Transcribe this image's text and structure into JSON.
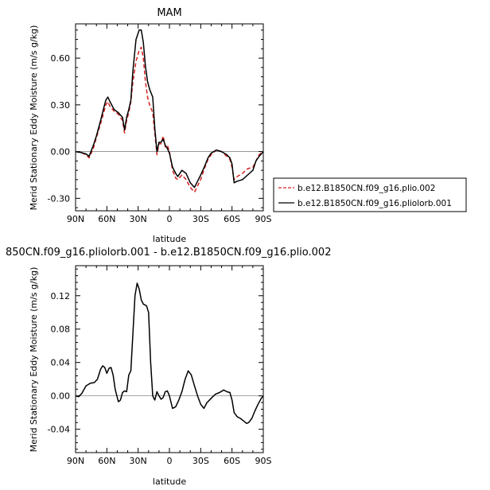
{
  "chart_data": [
    {
      "type": "line",
      "title": "MAM",
      "xlabel": "latitude",
      "ylabel": "Merid Stationary Eddy Moisture (m/s g/kg)",
      "x_ticks": [
        90,
        60,
        30,
        0,
        -30,
        -60,
        -90
      ],
      "x_tick_labels": [
        "90N",
        "60N",
        "30N",
        "0",
        "30S",
        "60S",
        "90S"
      ],
      "xlim": [
        90,
        -90
      ],
      "ylim": [
        -0.38,
        0.82
      ],
      "y_ticks": [
        0.6,
        0.3,
        0.0,
        -0.3
      ],
      "y_tick_labels": [
        "0.60",
        "0.30",
        "0.00",
        "-0.30"
      ],
      "legend_position": "right",
      "series": [
        {
          "name": "b.e12.B1850CN.f09_g16.plio.002",
          "color": "#d62020",
          "dash": "dashed",
          "points": [
            [
              90,
              0
            ],
            [
              85,
              -0.005
            ],
            [
              80,
              -0.02
            ],
            [
              77,
              -0.04
            ],
            [
              73,
              0.02
            ],
            [
              70,
              0.09
            ],
            [
              66,
              0.18
            ],
            [
              63,
              0.25
            ],
            [
              61,
              0.3
            ],
            [
              59,
              0.32
            ],
            [
              57,
              0.29
            ],
            [
              53,
              0.26
            ],
            [
              49,
              0.24
            ],
            [
              45,
              0.2
            ],
            [
              43,
              0.12
            ],
            [
              41,
              0.2
            ],
            [
              39,
              0.25
            ],
            [
              37,
              0.32
            ],
            [
              35,
              0.45
            ],
            [
              32,
              0.58
            ],
            [
              29,
              0.65
            ],
            [
              27,
              0.67
            ],
            [
              25,
              0.6
            ],
            [
              23,
              0.45
            ],
            [
              21,
              0.35
            ],
            [
              19,
              0.3
            ],
            [
              16,
              0.25
            ],
            [
              14,
              0.12
            ],
            [
              12,
              -0.02
            ],
            [
              10,
              0.05
            ],
            [
              8,
              0.05
            ],
            [
              6,
              0.1
            ],
            [
              4,
              0.03
            ],
            [
              2,
              0.04
            ],
            [
              0,
              0
            ],
            [
              -3,
              -0.12
            ],
            [
              -6,
              -0.17
            ],
            [
              -8,
              -0.18
            ],
            [
              -12,
              -0.15
            ],
            [
              -16,
              -0.18
            ],
            [
              -20,
              -0.23
            ],
            [
              -24,
              -0.26
            ],
            [
              -27,
              -0.22
            ],
            [
              -30,
              -0.18
            ],
            [
              -34,
              -0.1
            ],
            [
              -37,
              -0.05
            ],
            [
              -40,
              -0.02
            ],
            [
              -45,
              0.01
            ],
            [
              -50,
              0.0
            ],
            [
              -55,
              -0.03
            ],
            [
              -58,
              -0.05
            ],
            [
              -60,
              -0.1
            ],
            [
              -62,
              -0.18
            ],
            [
              -65,
              -0.16
            ],
            [
              -70,
              -0.14
            ],
            [
              -75,
              -0.11
            ],
            [
              -80,
              -0.1
            ],
            [
              -83,
              -0.06
            ],
            [
              -86,
              -0.02
            ],
            [
              -90,
              0.0
            ]
          ]
        },
        {
          "name": "b.e12.B1850CN.f09_g16.pliolorb.001",
          "color": "#000000",
          "dash": "solid",
          "points": [
            [
              90,
              0
            ],
            [
              85,
              -0.005
            ],
            [
              80,
              -0.015
            ],
            [
              77,
              -0.03
            ],
            [
              73,
              0.04
            ],
            [
              70,
              0.1
            ],
            [
              66,
              0.2
            ],
            [
              63,
              0.28
            ],
            [
              61,
              0.33
            ],
            [
              59,
              0.35
            ],
            [
              57,
              0.32
            ],
            [
              53,
              0.27
            ],
            [
              49,
              0.25
            ],
            [
              45,
              0.22
            ],
            [
              43,
              0.14
            ],
            [
              41,
              0.22
            ],
            [
              39,
              0.27
            ],
            [
              37,
              0.33
            ],
            [
              35,
              0.52
            ],
            [
              32,
              0.72
            ],
            [
              29,
              0.78
            ],
            [
              27,
              0.78
            ],
            [
              25,
              0.7
            ],
            [
              23,
              0.55
            ],
            [
              21,
              0.45
            ],
            [
              19,
              0.4
            ],
            [
              16,
              0.35
            ],
            [
              14,
              0.15
            ],
            [
              12,
              0.0
            ],
            [
              10,
              0.06
            ],
            [
              8,
              0.06
            ],
            [
              6,
              0.08
            ],
            [
              4,
              0.04
            ],
            [
              2,
              0.02
            ],
            [
              0,
              -0.01
            ],
            [
              -3,
              -0.1
            ],
            [
              -6,
              -0.14
            ],
            [
              -8,
              -0.16
            ],
            [
              -12,
              -0.12
            ],
            [
              -16,
              -0.14
            ],
            [
              -20,
              -0.2
            ],
            [
              -24,
              -0.23
            ],
            [
              -27,
              -0.19
            ],
            [
              -30,
              -0.15
            ],
            [
              -34,
              -0.09
            ],
            [
              -37,
              -0.04
            ],
            [
              -40,
              -0.01
            ],
            [
              -45,
              0.01
            ],
            [
              -50,
              0.0
            ],
            [
              -55,
              -0.02
            ],
            [
              -58,
              -0.04
            ],
            [
              -60,
              -0.08
            ],
            [
              -62,
              -0.2
            ],
            [
              -65,
              -0.19
            ],
            [
              -70,
              -0.18
            ],
            [
              -75,
              -0.15
            ],
            [
              -80,
              -0.12
            ],
            [
              -83,
              -0.06
            ],
            [
              -86,
              -0.03
            ],
            [
              -90,
              0.0
            ]
          ]
        }
      ]
    },
    {
      "type": "line",
      "title": "850CN.f09_g16.pliolorb.001 - b.e12.B1850CN.f09_g16.plio.002",
      "xlabel": "latitude",
      "ylabel": "Merid Stationary Eddy Moisture (m/s g/kg)",
      "x_ticks": [
        90,
        60,
        30,
        0,
        -30,
        -60,
        -90
      ],
      "x_tick_labels": [
        "90N",
        "60N",
        "30N",
        "0",
        "30S",
        "60S",
        "90S"
      ],
      "xlim": [
        90,
        -90
      ],
      "ylim": [
        -0.068,
        0.156
      ],
      "y_ticks": [
        0.12,
        0.08,
        0.04,
        0.0,
        -0.04
      ],
      "y_tick_labels": [
        "0.12",
        "0.08",
        "0.04",
        "0.00",
        "-0.04"
      ],
      "series": [
        {
          "color": "#000000",
          "dash": "solid",
          "points": [
            [
              90,
              0
            ],
            [
              87,
              -0.001
            ],
            [
              84,
              0.003
            ],
            [
              80,
              0.012
            ],
            [
              76,
              0.015
            ],
            [
              72,
              0.016
            ],
            [
              69,
              0.02
            ],
            [
              66,
              0.032
            ],
            [
              64,
              0.036
            ],
            [
              62,
              0.034
            ],
            [
              60,
              0.027
            ],
            [
              58,
              0.033
            ],
            [
              56,
              0.034
            ],
            [
              54,
              0.025
            ],
            [
              52,
              0.008
            ],
            [
              49,
              -0.007
            ],
            [
              47,
              -0.005
            ],
            [
              45,
              0.004
            ],
            [
              43,
              0.006
            ],
            [
              41,
              0.005
            ],
            [
              39,
              0.025
            ],
            [
              37,
              0.03
            ],
            [
              35,
              0.075
            ],
            [
              33,
              0.12
            ],
            [
              31,
              0.135
            ],
            [
              29,
              0.128
            ],
            [
              27,
              0.115
            ],
            [
              25,
              0.11
            ],
            [
              22,
              0.108
            ],
            [
              20,
              0.1
            ],
            [
              18,
              0.04
            ],
            [
              16,
              0.0
            ],
            [
              14,
              -0.005
            ],
            [
              12,
              0.005
            ],
            [
              10,
              0.0
            ],
            [
              8,
              -0.004
            ],
            [
              6,
              -0.002
            ],
            [
              4,
              0.005
            ],
            [
              2,
              0.006
            ],
            [
              0,
              0.0
            ],
            [
              -3,
              -0.015
            ],
            [
              -6,
              -0.013
            ],
            [
              -9,
              -0.005
            ],
            [
              -12,
              0.005
            ],
            [
              -15,
              0.02
            ],
            [
              -18,
              0.03
            ],
            [
              -21,
              0.025
            ],
            [
              -24,
              0.012
            ],
            [
              -27,
              0.0
            ],
            [
              -30,
              -0.01
            ],
            [
              -33,
              -0.015
            ],
            [
              -36,
              -0.008
            ],
            [
              -40,
              -0.003
            ],
            [
              -44,
              0.002
            ],
            [
              -48,
              0.004
            ],
            [
              -52,
              0.007
            ],
            [
              -55,
              0.005
            ],
            [
              -58,
              0.004
            ],
            [
              -60,
              -0.005
            ],
            [
              -62,
              -0.02
            ],
            [
              -65,
              -0.025
            ],
            [
              -68,
              -0.027
            ],
            [
              -71,
              -0.03
            ],
            [
              -74,
              -0.033
            ],
            [
              -76,
              -0.032
            ],
            [
              -79,
              -0.027
            ],
            [
              -82,
              -0.018
            ],
            [
              -85,
              -0.01
            ],
            [
              -88,
              -0.003
            ],
            [
              -90,
              0.0
            ]
          ]
        }
      ]
    }
  ]
}
